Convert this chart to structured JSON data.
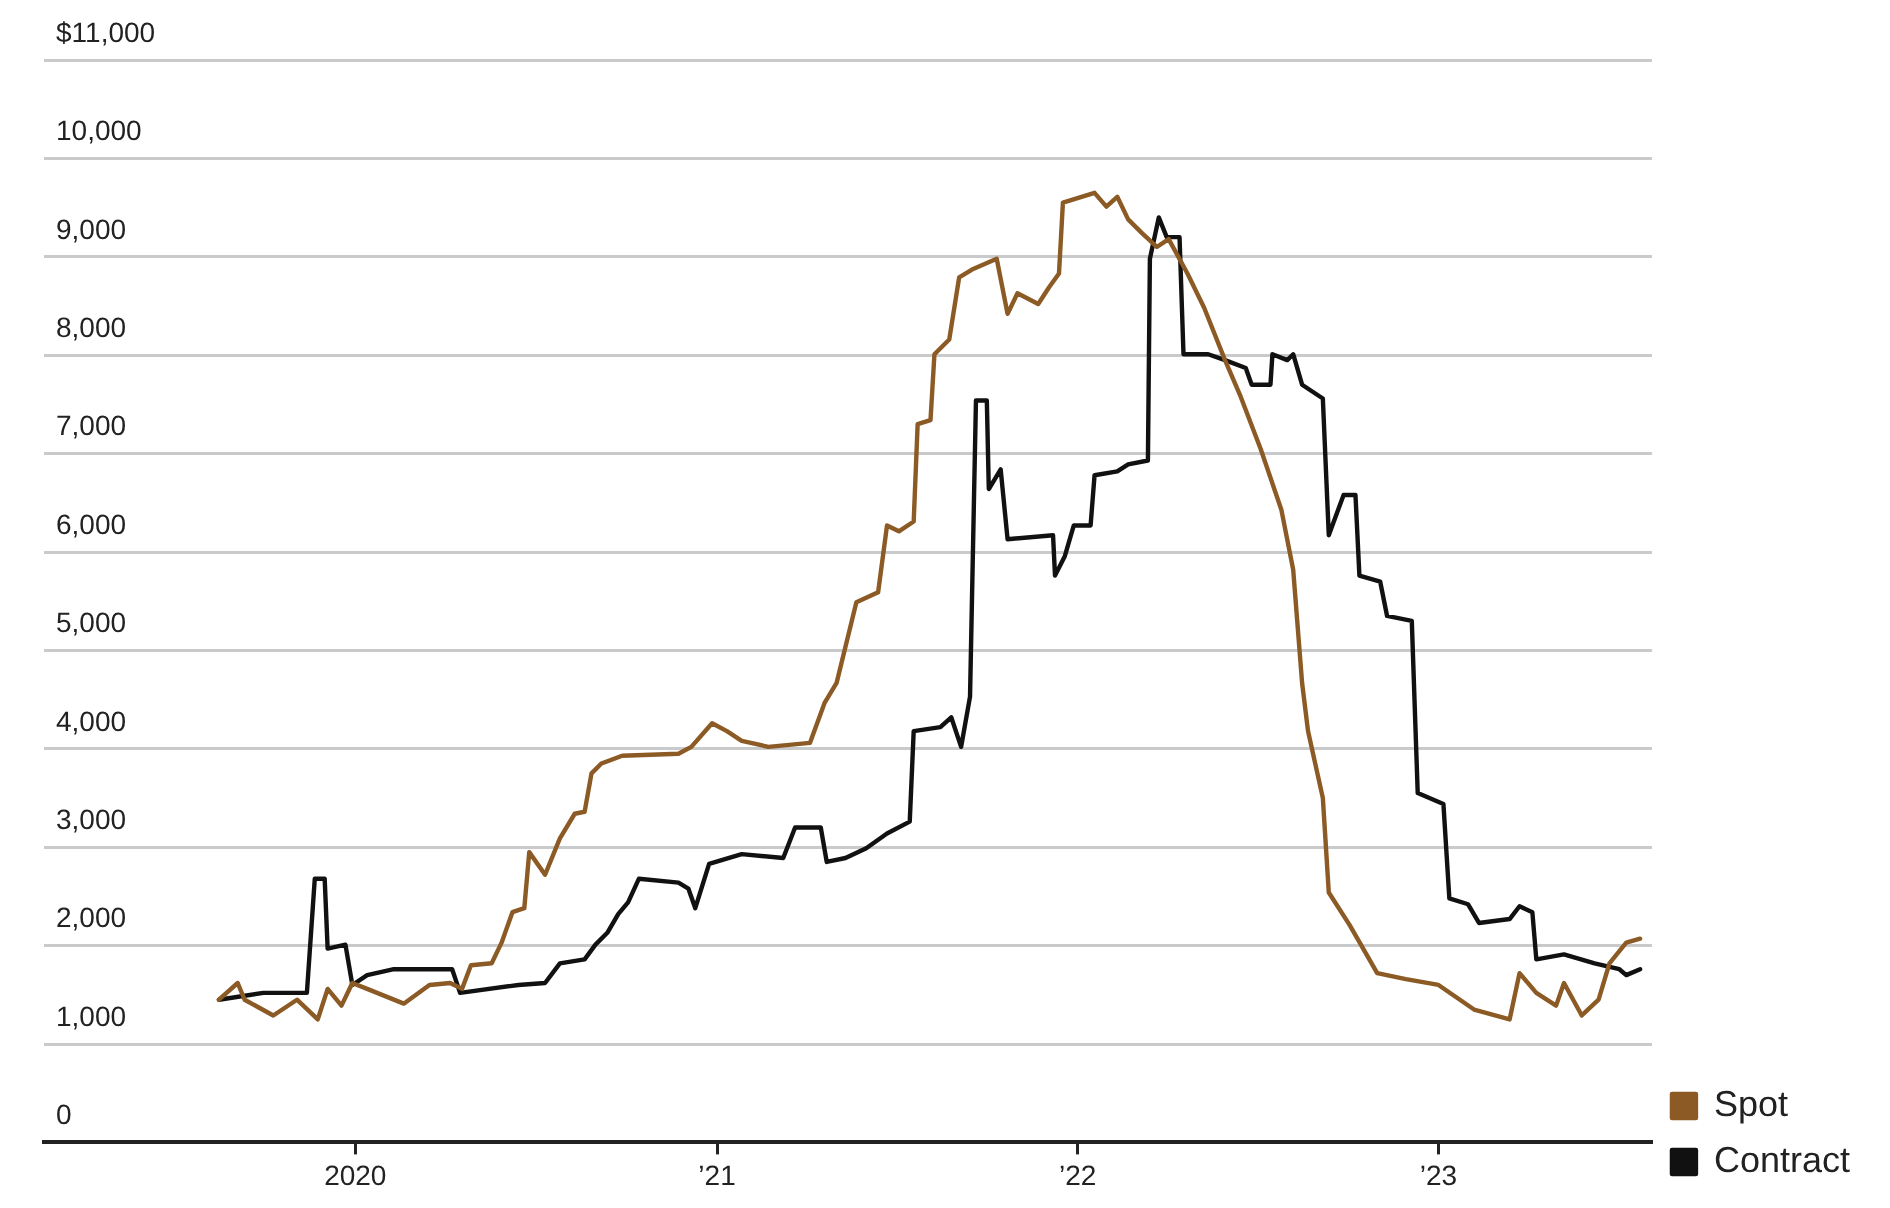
{
  "chart_data": {
    "type": "line",
    "legend": "right",
    "grid": "y",
    "marker": "none",
    "line_style": "solid",
    "xlim": [
      "2019-02-20",
      "2023-08-05"
    ],
    "xticks": [
      {
        "value": "2020-01-01",
        "label": "2020"
      },
      {
        "value": "2021-01-01",
        "label": "’21"
      },
      {
        "value": "2022-01-01",
        "label": "’22"
      },
      {
        "value": "2023-01-01",
        "label": "’23"
      }
    ],
    "ylim": [
      0,
      11000
    ],
    "yticks": [
      0,
      {
        "value": 1000,
        "label": "1,000"
      },
      {
        "value": 2000,
        "label": "2,000"
      },
      {
        "value": 3000,
        "label": "3,000"
      },
      {
        "value": 4000,
        "label": "4,000"
      },
      {
        "value": 5000,
        "label": "5,000"
      },
      {
        "value": 6000,
        "label": "6,000"
      },
      {
        "value": 7000,
        "label": "7,000"
      },
      {
        "value": 8000,
        "label": "8,000"
      },
      {
        "value": 9000,
        "label": "9,000"
      },
      {
        "value": 10000,
        "label": "10,000"
      },
      {
        "value": 11000,
        "label": "$11,000"
      }
    ],
    "series": [
      {
        "name": "Spot",
        "color": "#8c5a24",
        "x": [
          "2019-08-16",
          "2019-09-04",
          "2019-09-11",
          "2019-10-10",
          "2019-11-03",
          "2019-11-24",
          "2019-12-04",
          "2019-12-18",
          "2019-12-29",
          "2020-01-13",
          "2020-02-19",
          "2020-03-16",
          "2020-04-06",
          "2020-04-18",
          "2020-04-27",
          "2020-05-18",
          "2020-05-28",
          "2020-06-08",
          "2020-06-20",
          "2020-06-25",
          "2020-07-11",
          "2020-07-26",
          "2020-08-10",
          "2020-08-20",
          "2020-08-27",
          "2020-09-06",
          "2020-09-27",
          "2020-11-23",
          "2020-12-06",
          "2020-12-27",
          "2021-01-11",
          "2021-01-26",
          "2021-02-22",
          "2021-04-05",
          "2021-04-20",
          "2021-05-02",
          "2021-05-22",
          "2021-06-13",
          "2021-06-22",
          "2021-07-04",
          "2021-07-19",
          "2021-07-23",
          "2021-08-05",
          "2021-08-09",
          "2021-08-24",
          "2021-09-03",
          "2021-09-16",
          "2021-10-11",
          "2021-10-22",
          "2021-11-01",
          "2021-11-22",
          "2021-12-03",
          "2021-12-13",
          "2021-12-17",
          "2022-01-18",
          "2022-01-30",
          "2022-02-10",
          "2022-02-21",
          "2022-03-07",
          "2022-03-22",
          "2022-04-03",
          "2022-04-22",
          "2022-05-09",
          "2022-05-30",
          "2022-06-14",
          "2022-07-05",
          "2022-07-26",
          "2022-08-07",
          "2022-08-16",
          "2022-08-22",
          "2022-09-06",
          "2022-09-12",
          "2022-10-03",
          "2022-10-31",
          "2022-11-29",
          "2023-01-01",
          "2023-02-06",
          "2023-03-14",
          "2023-03-24",
          "2023-04-10",
          "2023-04-30",
          "2023-05-08",
          "2023-05-26",
          "2023-06-12",
          "2023-06-23",
          "2023-07-10",
          "2023-07-24"
        ],
        "values": [
          1450,
          1620,
          1450,
          1290,
          1450,
          1250,
          1560,
          1390,
          1620,
          1560,
          1410,
          1600,
          1620,
          1560,
          1800,
          1820,
          2030,
          2340,
          2380,
          2950,
          2720,
          3090,
          3340,
          3360,
          3750,
          3850,
          3930,
          3950,
          4020,
          4260,
          4180,
          4080,
          4020,
          4060,
          4470,
          4670,
          5490,
          5590,
          6270,
          6210,
          6310,
          7300,
          7340,
          8010,
          8160,
          8790,
          8870,
          8980,
          8420,
          8630,
          8520,
          8690,
          8830,
          9550,
          9650,
          9510,
          9610,
          9380,
          9240,
          9100,
          9180,
          8830,
          8480,
          7950,
          7600,
          7050,
          6430,
          5820,
          4670,
          4180,
          3500,
          2540,
          2210,
          1720,
          1660,
          1600,
          1350,
          1250,
          1720,
          1520,
          1390,
          1620,
          1290,
          1450,
          1820,
          2030,
          2070
        ]
      },
      {
        "name": "Contract",
        "color": "#111111",
        "x": [
          "2019-08-16",
          "2019-09-30",
          "2019-11-13",
          "2019-11-21",
          "2019-12-01",
          "2019-12-04",
          "2019-12-22",
          "2019-12-29",
          "2020-01-13",
          "2020-02-09",
          "2020-04-08",
          "2020-04-16",
          "2020-06-14",
          "2020-07-11",
          "2020-07-26",
          "2020-08-20",
          "2020-08-31",
          "2020-09-12",
          "2020-09-23",
          "2020-10-03",
          "2020-10-14",
          "2020-11-23",
          "2020-12-03",
          "2020-12-10",
          "2020-12-24",
          "2021-01-26",
          "2021-03-09",
          "2021-03-21",
          "2021-04-16",
          "2021-04-22",
          "2021-05-11",
          "2021-06-01",
          "2021-06-22",
          "2021-07-15",
          "2021-07-19",
          "2021-08-15",
          "2021-08-26",
          "2021-09-05",
          "2021-09-14",
          "2021-09-20",
          "2021-10-01",
          "2021-10-03",
          "2021-10-15",
          "2021-10-22",
          "2021-12-07",
          "2021-12-09",
          "2021-12-19",
          "2021-12-28",
          "2022-01-14",
          "2022-01-18",
          "2022-02-10",
          "2022-02-21",
          "2022-03-13",
          "2022-03-15",
          "2022-03-24",
          "2022-04-01",
          "2022-04-14",
          "2022-04-18",
          "2022-05-13",
          "2022-05-30",
          "2022-06-20",
          "2022-06-26",
          "2022-07-15",
          "2022-07-17",
          "2022-08-01",
          "2022-08-07",
          "2022-08-16",
          "2022-09-06",
          "2022-09-12",
          "2022-09-27",
          "2022-10-09",
          "2022-10-13",
          "2022-11-03",
          "2022-11-10",
          "2022-12-05",
          "2022-12-11",
          "2023-01-06",
          "2023-01-12",
          "2023-01-31",
          "2023-02-11",
          "2023-03-14",
          "2023-03-24",
          "2023-04-06",
          "2023-04-10",
          "2023-05-08",
          "2023-06-08",
          "2023-07-03",
          "2023-07-10",
          "2023-07-24"
        ],
        "values": [
          1450,
          1520,
          1520,
          2680,
          2680,
          1970,
          2010,
          1600,
          1700,
          1760,
          1760,
          1520,
          1600,
          1620,
          1820,
          1860,
          2010,
          2130,
          2320,
          2440,
          2680,
          2640,
          2580,
          2380,
          2830,
          2930,
          2890,
          3200,
          3200,
          2850,
          2890,
          2990,
          3140,
          3260,
          4180,
          4220,
          4320,
          4020,
          4530,
          7540,
          7540,
          6640,
          6840,
          6130,
          6170,
          5760,
          5960,
          6270,
          6270,
          6780,
          6820,
          6890,
          6930,
          8980,
          9400,
          9200,
          9200,
          8010,
          8010,
          7950,
          7870,
          7700,
          7700,
          8010,
          7950,
          8010,
          7700,
          7560,
          6170,
          6580,
          6580,
          5760,
          5700,
          5350,
          5300,
          3550,
          3440,
          2480,
          2420,
          2230,
          2270,
          2400,
          2340,
          1860,
          1910,
          1820,
          1760,
          1700,
          1760
        ]
      }
    ]
  }
}
